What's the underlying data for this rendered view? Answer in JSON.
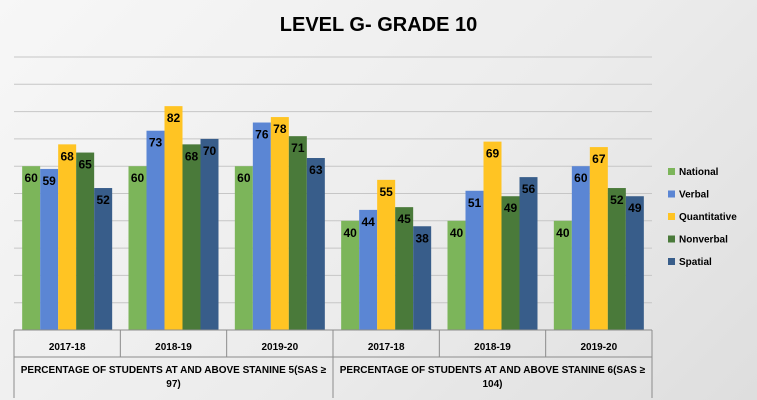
{
  "chart_data": {
    "type": "bar",
    "title": "LEVEL G- GRADE 10",
    "categories": [
      "2017-18",
      "2018-19",
      "2019-20",
      "2017-18",
      "2018-19",
      "2019-20"
    ],
    "groups": [
      {
        "label_lines": [
          "PERCENTAGE OF STUDENTS AT AND ABOVE STANINE 5(SAS ≥",
          "97)"
        ],
        "span": [
          0,
          2
        ]
      },
      {
        "label_lines": [
          "PERCENTAGE OF STUDENTS AT AND ABOVE STANINE 6(SAS ≥",
          "104)"
        ],
        "span": [
          3,
          5
        ]
      }
    ],
    "series": [
      {
        "name": "National",
        "color": "#7cb55a",
        "values": [
          60,
          60,
          60,
          40,
          40,
          40
        ]
      },
      {
        "name": "Verbal",
        "color": "#5b86d4",
        "values": [
          59,
          73,
          76,
          44,
          51,
          60
        ]
      },
      {
        "name": "Quantitative",
        "color": "#ffc423",
        "values": [
          68,
          82,
          78,
          55,
          69,
          67
        ]
      },
      {
        "name": "Nonverbal",
        "color": "#4a7a3a",
        "values": [
          65,
          68,
          71,
          45,
          49,
          52
        ]
      },
      {
        "name": "Spatial",
        "color": "#385d8a",
        "values": [
          52,
          70,
          63,
          38,
          56,
          49
        ]
      }
    ],
    "ylim": [
      0,
      100
    ],
    "grid": true,
    "legend_position": "right"
  }
}
